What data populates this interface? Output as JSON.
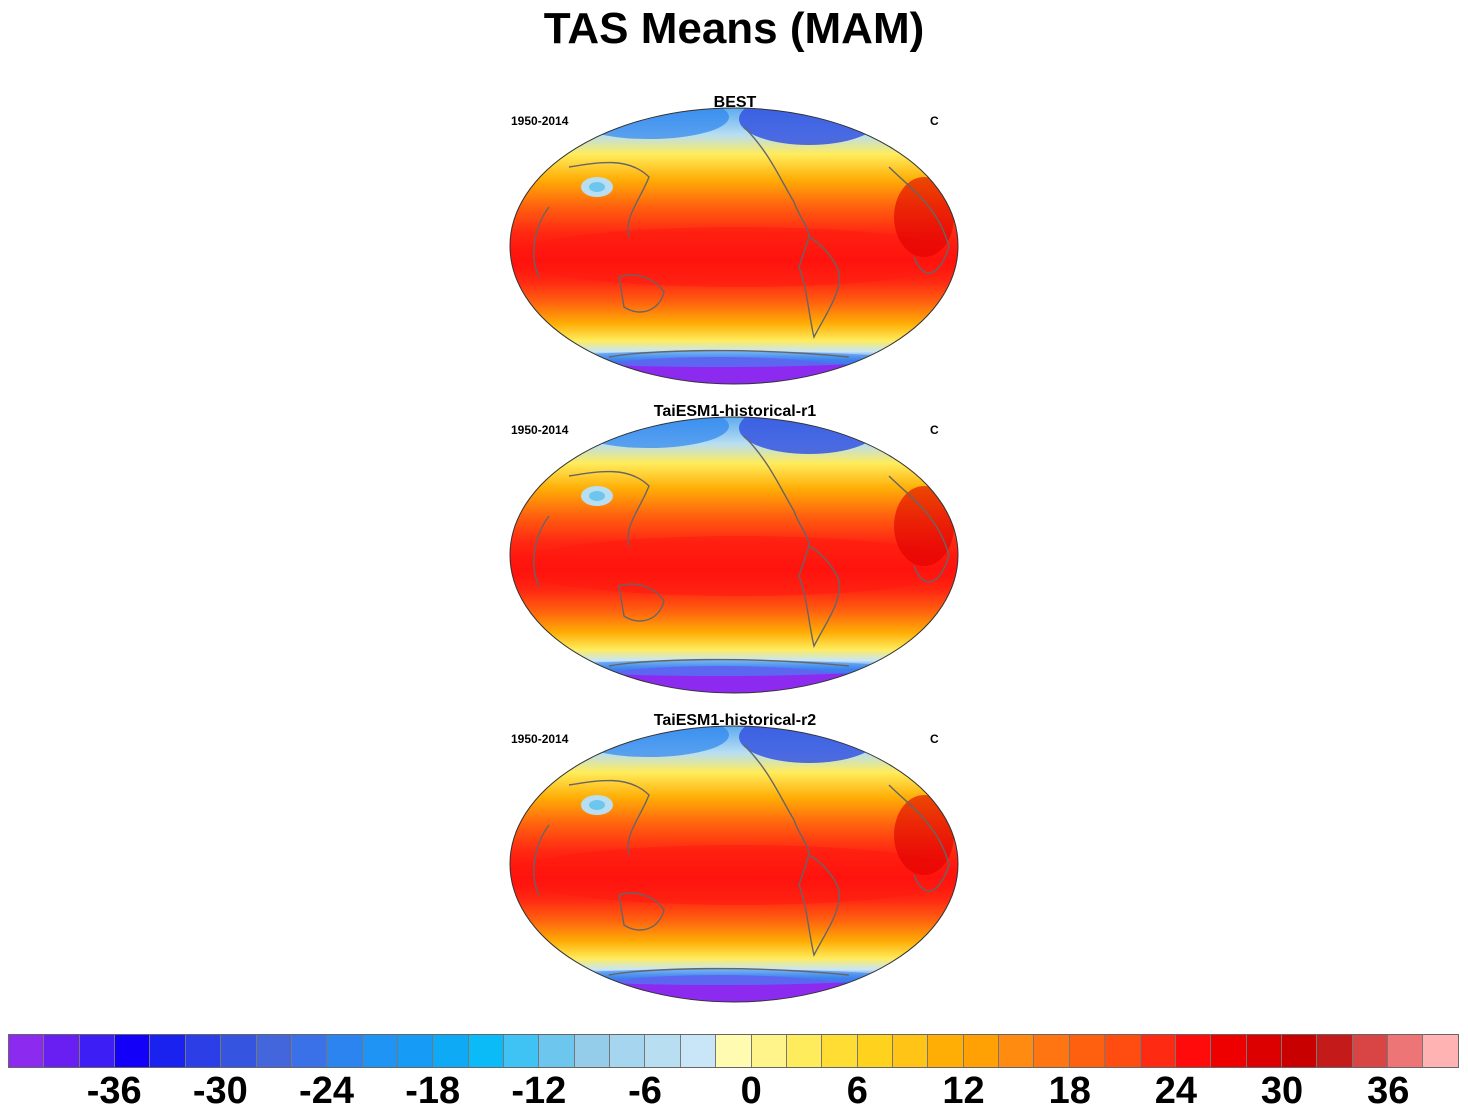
{
  "title": "TAS Means (MAM)",
  "panels": [
    {
      "title": "BEST",
      "period": "1950-2014",
      "units": "C"
    },
    {
      "title": "TaiESM1-historical-r1",
      "period": "1950-2014",
      "units": "C"
    },
    {
      "title": "TaiESM1-historical-r2",
      "period": "1950-2014",
      "units": "C"
    }
  ],
  "colorbar": {
    "labels": [
      "-36",
      "-30",
      "-24",
      "-18",
      "-12",
      "-6",
      "0",
      "6",
      "12",
      "18",
      "24",
      "30",
      "36"
    ],
    "colors": [
      "#8c2af0",
      "#6a1ff2",
      "#3d1ff5",
      "#1300f8",
      "#1a22f0",
      "#2c3fe6",
      "#3555e0",
      "#4466dd",
      "#3a70e8",
      "#2c84f0",
      "#1f94f5",
      "#169cf7",
      "#0faaf5",
      "#0bbbf7",
      "#3fc3f5",
      "#6cc6ee",
      "#93cde9",
      "#a6d6ef",
      "#b8def2",
      "#c8e6f7",
      "#fffbb0",
      "#fff48a",
      "#ffec5c",
      "#ffdd33",
      "#ffd21e",
      "#ffc415",
      "#ffae06",
      "#ffa005",
      "#ff8c10",
      "#ff7512",
      "#ff600f",
      "#ff4c10",
      "#ff2a12",
      "#ff0b0b",
      "#ee0000",
      "#dd0000",
      "#c80000",
      "#c41a1a",
      "#d94444",
      "#ee7575",
      "#ffb3b3"
    ]
  }
}
